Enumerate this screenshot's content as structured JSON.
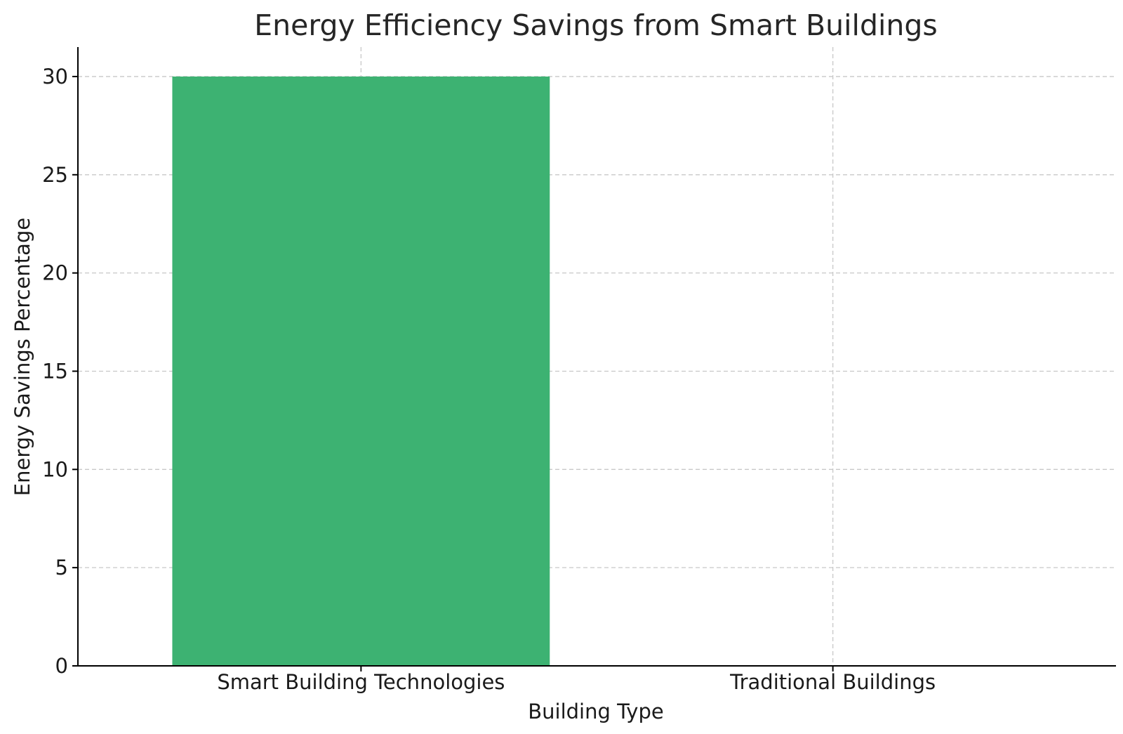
{
  "chart_data": {
    "type": "bar",
    "title": "Energy Efficiency Savings from Smart Buildings",
    "xlabel": "Building Type",
    "ylabel": "Energy Savings Percentage",
    "categories": [
      "Smart Building Technologies",
      "Traditional Buildings"
    ],
    "values": [
      30,
      0
    ],
    "ylim": [
      0,
      31.5
    ],
    "yticks": [
      0,
      5,
      10,
      15,
      20,
      25,
      30
    ],
    "grid": true,
    "bar_color": "#3db272"
  }
}
